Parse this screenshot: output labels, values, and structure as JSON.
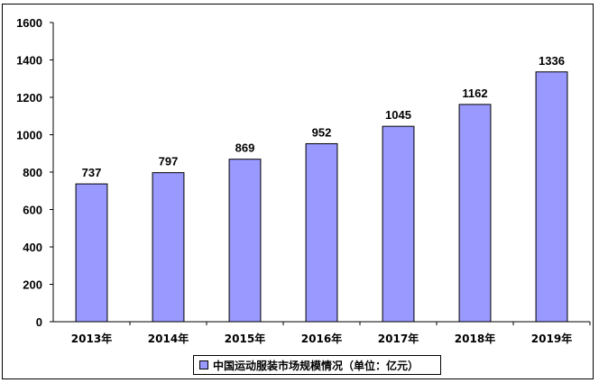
{
  "chart_data": {
    "type": "bar",
    "categories": [
      "2013年",
      "2014年",
      "2015年",
      "2016年",
      "2017年",
      "2018年",
      "2019年"
    ],
    "values": [
      737,
      797,
      869,
      952,
      1045,
      1162,
      1336
    ],
    "series": [
      {
        "name": "中国运动服装市场规模情况（单位：亿元）",
        "values": [
          737,
          797,
          869,
          952,
          1045,
          1162,
          1336
        ]
      }
    ],
    "title": "",
    "xlabel": "",
    "ylabel": "",
    "ylim": [
      0,
      1600
    ],
    "yticks": [
      0,
      200,
      400,
      600,
      800,
      1000,
      1200,
      1400,
      1600
    ],
    "grid": false,
    "legend_position": "bottom",
    "bar_color": "#9999ff"
  }
}
